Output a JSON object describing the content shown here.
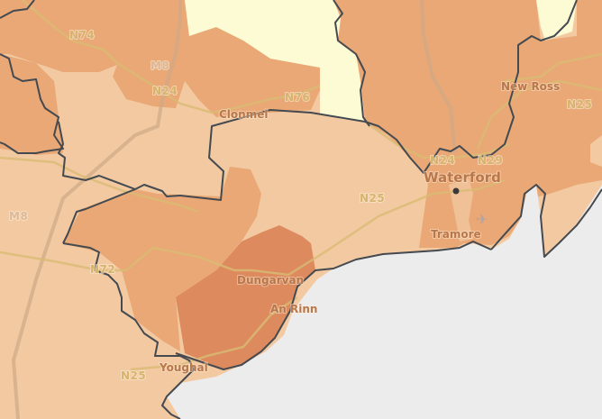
{
  "map": {
    "colors": {
      "sea": "#ececec",
      "low": "#fdfbd4",
      "light": "#f2c9a0",
      "medium": "#e9a875",
      "high": "#dc8a5e",
      "border": "#444a50",
      "road": "#d9bb74"
    },
    "road_labels": [
      "N74",
      "M8",
      "N24",
      "N76",
      "N25",
      "N24",
      "N29",
      "N25",
      "M8",
      "N72",
      "N25"
    ],
    "town_labels": [
      "Clonmel",
      "New Ross",
      "Waterford",
      "Tramore",
      "Dungarvan",
      "An Rinn",
      "Youghal"
    ],
    "icons": [
      "airport-icon",
      "city-point-icon"
    ]
  }
}
